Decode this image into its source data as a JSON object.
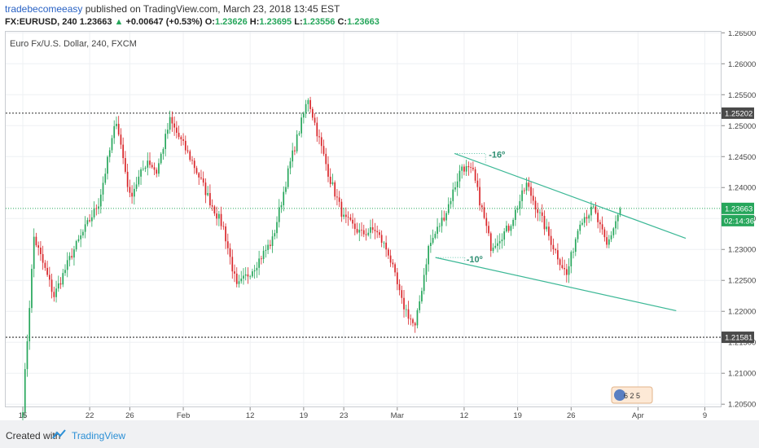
{
  "header": {
    "author": "tradebecomeeasy",
    "published_text": "published on TradingView.com, March 23, 2018 13:45 EST",
    "symbol": "FX:EURUSD, 240",
    "last": "1.23663",
    "change_arrow": "▲",
    "change": "+0.00647 (+0.53%)",
    "open_label": "O:",
    "open": "1.23626",
    "high_label": "H:",
    "high": "1.23695",
    "low_label": "L:",
    "low": "1.23556",
    "close_label": "C:",
    "close": "1.23663"
  },
  "chart_data": {
    "type": "candlestick",
    "title": "Euro Fx/U.S. Dollar, 240, FXCM",
    "ylim": [
      1.2045,
      1.2653
    ],
    "y_ticks": [
      "1.26500",
      "1.26000",
      "1.25500",
      "1.25000",
      "1.24500",
      "1.24000",
      "1.23500",
      "1.23000",
      "1.22500",
      "1.22000",
      "1.21500",
      "1.21000",
      "1.20500"
    ],
    "x_ticks": [
      "15",
      "22",
      "26",
      "Feb",
      "12",
      "19",
      "23",
      "Mar",
      "12",
      "19",
      "26",
      "Apr",
      "9"
    ],
    "grid": true,
    "up_color": "#26a65b",
    "down_color": "#d9262a",
    "horizontal_levels": [
      {
        "label": "1.25202",
        "value": 1.25202,
        "style": "dotted",
        "color": "#555555"
      },
      {
        "label": "1.21581",
        "value": 1.21581,
        "style": "dotted",
        "color": "#555555"
      },
      {
        "label": "1.23663",
        "value": 1.23663,
        "style": "dotted",
        "color": "#26a65b"
      }
    ],
    "countdown": "02:14:36",
    "trendlines": [
      {
        "from": [
          "Mar 7",
          1.2455
        ],
        "to": [
          "Apr 7",
          1.2318
        ],
        "color": "#3cb896"
      },
      {
        "from": [
          "Mar 5",
          1.2287
        ],
        "to": [
          "Apr 6",
          1.2201
        ],
        "color": "#3cb896"
      }
    ],
    "annotations": [
      "-16º",
      "-10º"
    ],
    "anchors": [
      {
        "x": 0,
        "y": 1.2045
      },
      {
        "x": 5,
        "y": 1.232
      },
      {
        "x": 14,
        "y": 1.2225
      },
      {
        "x": 22,
        "y": 1.2293
      },
      {
        "x": 34,
        "y": 1.2375
      },
      {
        "x": 42,
        "y": 1.251
      },
      {
        "x": 48,
        "y": 1.2385
      },
      {
        "x": 56,
        "y": 1.2445
      },
      {
        "x": 60,
        "y": 1.2425
      },
      {
        "x": 66,
        "y": 1.2508
      },
      {
        "x": 76,
        "y": 1.2442
      },
      {
        "x": 84,
        "y": 1.2378
      },
      {
        "x": 90,
        "y": 1.2335
      },
      {
        "x": 96,
        "y": 1.2238
      },
      {
        "x": 104,
        "y": 1.2273
      },
      {
        "x": 112,
        "y": 1.2315
      },
      {
        "x": 120,
        "y": 1.244
      },
      {
        "x": 128,
        "y": 1.2545
      },
      {
        "x": 132,
        "y": 1.249
      },
      {
        "x": 138,
        "y": 1.2412
      },
      {
        "x": 144,
        "y": 1.235
      },
      {
        "x": 152,
        "y": 1.2325
      },
      {
        "x": 158,
        "y": 1.2332
      },
      {
        "x": 164,
        "y": 1.2295
      },
      {
        "x": 170,
        "y": 1.2215
      },
      {
        "x": 176,
        "y": 1.2173
      },
      {
        "x": 182,
        "y": 1.2303
      },
      {
        "x": 190,
        "y": 1.2362
      },
      {
        "x": 197,
        "y": 1.2435
      },
      {
        "x": 202,
        "y": 1.2423
      },
      {
        "x": 210,
        "y": 1.2305
      },
      {
        "x": 218,
        "y": 1.2335
      },
      {
        "x": 226,
        "y": 1.2405
      },
      {
        "x": 232,
        "y": 1.2355
      },
      {
        "x": 238,
        "y": 1.2305
      },
      {
        "x": 244,
        "y": 1.2258
      },
      {
        "x": 250,
        "y": 1.2348
      },
      {
        "x": 256,
        "y": 1.2365
      },
      {
        "x": 262,
        "y": 1.2305
      },
      {
        "x": 268,
        "y": 1.2366
      }
    ]
  },
  "badge_text": "6 2 5",
  "footer": {
    "created_with": "Created with",
    "brand": "TradingView"
  }
}
